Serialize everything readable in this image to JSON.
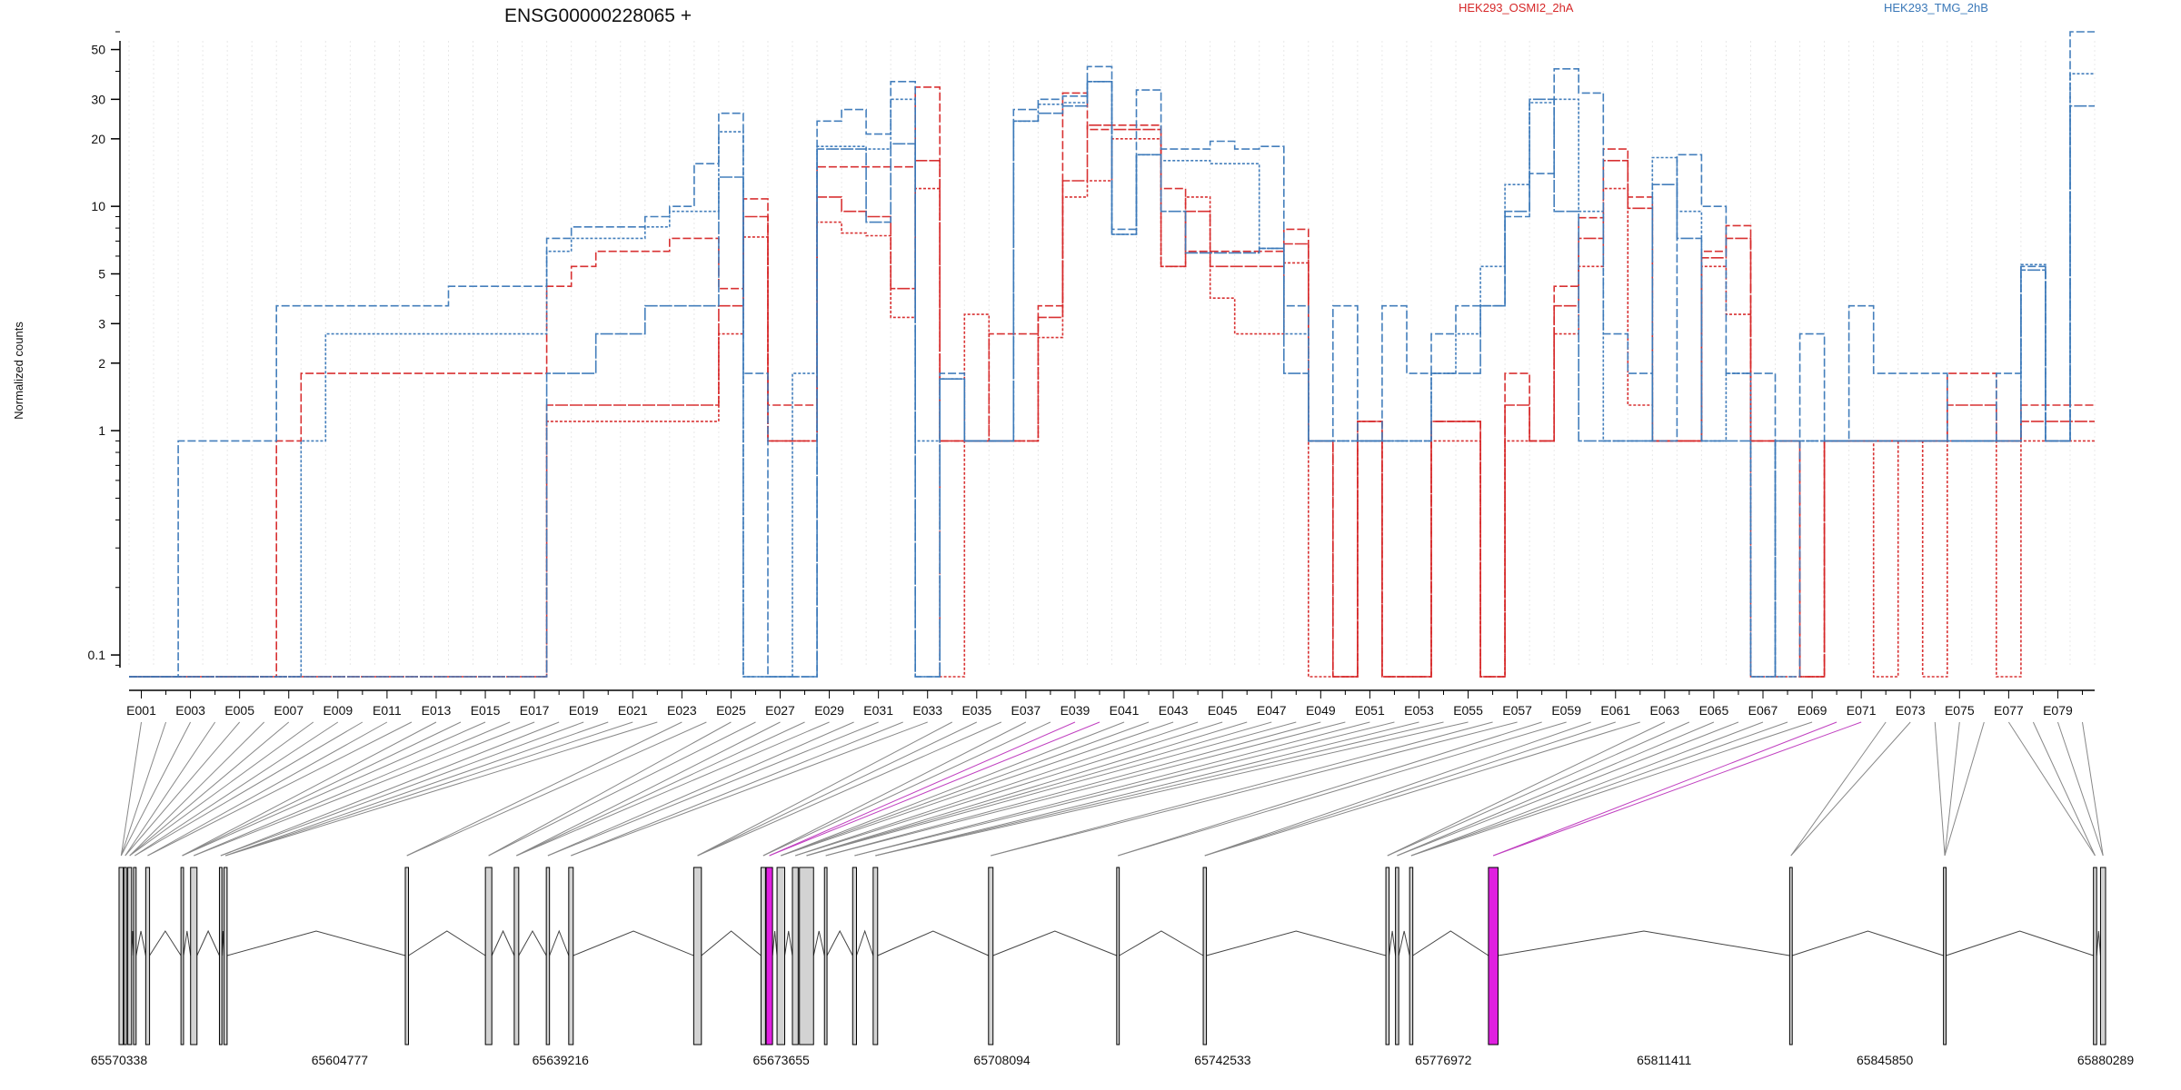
{
  "chart_data": {
    "type": "line",
    "title": "ENSG00000228065 +",
    "ylabel": "Normalized counts",
    "yscale": "log",
    "yticks": [
      "0.1",
      "1",
      "2",
      "3",
      "5",
      "10",
      "20",
      "30",
      "50"
    ],
    "ytick_values": [
      0.1,
      1,
      2,
      3,
      5,
      10,
      20,
      30,
      50
    ],
    "ylim": [
      0.08,
      60
    ],
    "legend": [
      {
        "name": "HEK293_OSMI2_2hA",
        "color": "#d62728"
      },
      {
        "name": "HEK293_TMG_2hB",
        "color": "#3a78b8"
      }
    ],
    "exon_labels": [
      "E001",
      "E003",
      "E005",
      "E007",
      "E009",
      "E011",
      "E013",
      "E015",
      "E017",
      "E019",
      "E021",
      "E023",
      "E025",
      "E027",
      "E029",
      "E031",
      "E033",
      "E035",
      "E037",
      "E039",
      "E041",
      "E043",
      "E045",
      "E047",
      "E049",
      "E051",
      "E053",
      "E055",
      "E057",
      "E059",
      "E061",
      "E063",
      "E065",
      "E067",
      "E069",
      "E071",
      "E073",
      "E075",
      "E077",
      "E079"
    ],
    "exon_count": 80,
    "series": [
      {
        "name": "HEK293_OSMI2_2hA",
        "color": "#d62728",
        "values": [
          0.08,
          0.08,
          0.08,
          0.08,
          0.08,
          0.08,
          0.9,
          1.8,
          1.8,
          1.8,
          1.8,
          1.8,
          1.8,
          1.8,
          1.8,
          1.8,
          1.8,
          4.4,
          5.4,
          6.3,
          6.3,
          6.3,
          7.2,
          7.2,
          4.3,
          10.8,
          1.3,
          1.3,
          15,
          15,
          15,
          15,
          34,
          0.9,
          0.9,
          2.7,
          2.7,
          3.6,
          32,
          22,
          23,
          23,
          12,
          6.3,
          6.3,
          6.3,
          6.3,
          7.9,
          0.9,
          0.08,
          1.1,
          0.08,
          0.08,
          1.1,
          1.1,
          0.08,
          1.8,
          0.9,
          4.4,
          8.9,
          18,
          11,
          0.9,
          0.9,
          6.3,
          8.2,
          0.9,
          0.9,
          0.08,
          0.9,
          0.9,
          0.9,
          0.9,
          0.9,
          1.8,
          1.8,
          0.9,
          1.3,
          1.3,
          1.3
        ]
      },
      {
        "name": "HEK293_OSMI2_2hA",
        "color": "#d62728",
        "values": [
          0.08,
          0.08,
          0.08,
          0.08,
          0.08,
          0.08,
          0.08,
          0.08,
          0.08,
          0.08,
          0.08,
          0.08,
          0.08,
          0.08,
          0.08,
          0.08,
          0.08,
          1.1,
          1.1,
          1.1,
          1.1,
          1.1,
          1.1,
          1.1,
          2.7,
          7.3,
          0.9,
          0.9,
          8.5,
          7.6,
          7.4,
          3.2,
          12,
          0.08,
          3.3,
          0.9,
          0.9,
          2.6,
          11,
          13,
          20,
          20,
          5.4,
          11,
          3.9,
          2.7,
          2.7,
          5.6,
          0.08,
          0.08,
          0.9,
          0.08,
          0.08,
          0.9,
          0.9,
          0.08,
          0.9,
          0.9,
          2.7,
          5.4,
          12,
          1.3,
          0.9,
          0.9,
          5.4,
          3.3,
          0.08,
          0.08,
          0.08,
          0.9,
          0.9,
          0.08,
          0.9,
          0.08,
          0.9,
          0.9,
          0.08,
          0.9,
          0.9,
          0.9
        ]
      },
      {
        "name": "HEK293_OSMI2_2hA",
        "color": "#d62728",
        "values": [
          0.08,
          0.08,
          0.08,
          0.08,
          0.08,
          0.08,
          0.08,
          0.08,
          0.08,
          0.08,
          0.08,
          0.08,
          0.08,
          0.08,
          0.08,
          0.08,
          0.08,
          1.3,
          1.3,
          1.3,
          1.3,
          1.3,
          1.3,
          1.3,
          3.6,
          9,
          0.9,
          0.9,
          11,
          9.5,
          9,
          4.3,
          16,
          0.9,
          0.9,
          0.9,
          0.9,
          3.2,
          13,
          23,
          22,
          22,
          5.4,
          9.5,
          5.4,
          5.4,
          5.4,
          6.8,
          0.9,
          0.08,
          1.1,
          0.08,
          0.08,
          1.1,
          1.1,
          0.08,
          1.3,
          0.9,
          3.6,
          7.2,
          16,
          9.8,
          0.9,
          0.9,
          5.9,
          7.2,
          0.9,
          0.9,
          0.08,
          0.9,
          0.9,
          0.9,
          0.9,
          0.9,
          1.3,
          1.3,
          0.9,
          1.1,
          1.1,
          1.1
        ]
      },
      {
        "name": "HEK293_TMG_2hB",
        "color": "#3a78b8",
        "values": [
          0.08,
          0.08,
          0.9,
          0.9,
          0.9,
          0.9,
          3.6,
          3.6,
          3.6,
          3.6,
          3.6,
          3.6,
          3.6,
          4.4,
          4.4,
          4.4,
          4.4,
          7.2,
          8.1,
          8.1,
          8.1,
          9,
          10,
          15.5,
          26,
          1.8,
          0.08,
          0.08,
          24,
          27,
          21,
          36,
          0.08,
          1.8,
          0.9,
          0.9,
          27,
          30,
          31,
          42,
          7.9,
          33,
          18,
          18,
          19.5,
          18,
          18.5,
          3.6,
          0.9,
          3.6,
          0.9,
          3.6,
          1.8,
          2.7,
          3.6,
          3.6,
          9,
          14,
          41,
          32,
          2.7,
          1.8,
          0.9,
          17,
          10,
          1.8,
          1.8,
          0.08,
          2.7,
          0.9,
          3.6,
          1.8,
          1.8,
          1.8,
          0.9,
          0.9,
          1.8,
          5.4,
          0.9,
          60
        ]
      },
      {
        "name": "HEK293_TMG_2hB",
        "color": "#3a78b8",
        "values": [
          0.08,
          0.08,
          0.08,
          0.08,
          0.08,
          0.08,
          0.08,
          0.9,
          2.7,
          2.7,
          2.7,
          2.7,
          2.7,
          2.7,
          2.7,
          2.7,
          2.7,
          6.3,
          7.2,
          7.2,
          7.2,
          8.1,
          9.5,
          9.5,
          21.5,
          0.08,
          0.08,
          1.8,
          18.5,
          18.5,
          18,
          30,
          0.9,
          1.7,
          0.9,
          0.9,
          24,
          28.5,
          29,
          36,
          7.5,
          17,
          16,
          16,
          15.5,
          15.5,
          6.5,
          2.7,
          0.9,
          0.9,
          0.9,
          0.9,
          0.9,
          1.8,
          2.7,
          5.4,
          12.5,
          29,
          30,
          9.5,
          0.9,
          0.9,
          16.5,
          9.5,
          0.9,
          1.8,
          0.08,
          0.9,
          0.9,
          0.9,
          0.9,
          0.9,
          0.9,
          0.9,
          0.9,
          0.9,
          0.9,
          5.5,
          0.9,
          39
        ]
      },
      {
        "name": "HEK293_TMG_2hB",
        "color": "#3a78b8",
        "values": [
          0.08,
          0.08,
          0.08,
          0.08,
          0.08,
          0.08,
          0.08,
          0.08,
          0.08,
          0.08,
          0.08,
          0.08,
          0.08,
          0.08,
          0.08,
          0.08,
          0.08,
          1.8,
          1.8,
          2.7,
          2.7,
          3.6,
          3.6,
          3.6,
          13.5,
          0.08,
          0.08,
          0.08,
          18,
          18,
          8.5,
          19,
          0.08,
          1.7,
          0.9,
          0.9,
          24,
          26,
          28,
          36,
          7.5,
          17,
          9.5,
          6.2,
          6.2,
          6.2,
          6.5,
          1.8,
          0.9,
          0.9,
          0.9,
          0.9,
          0.9,
          1.8,
          1.8,
          3.6,
          9.5,
          30,
          9.5,
          0.9,
          0.9,
          0.9,
          12.5,
          7.2,
          0.9,
          0.9,
          0.08,
          0.9,
          0.9,
          0.9,
          0.9,
          0.9,
          0.9,
          0.9,
          0.9,
          0.9,
          0.9,
          5.2,
          0.9,
          28
        ]
      }
    ],
    "genomic_ticks": [
      "65570338",
      "65604777",
      "65639216",
      "65673655",
      "65708094",
      "65742533",
      "65776972",
      "65811411",
      "65845850",
      "65880289"
    ],
    "genomic_range": [
      65570338,
      65880289
    ],
    "gene_exons": [
      {
        "start": 65570338,
        "end": 65571000
      },
      {
        "start": 65571100,
        "end": 65571500
      },
      {
        "start": 65571700,
        "end": 65572300
      },
      {
        "start": 65572600,
        "end": 65573000
      },
      {
        "start": 65574500,
        "end": 65575100
      },
      {
        "start": 65580000,
        "end": 65580400
      },
      {
        "start": 65581500,
        "end": 65582500
      },
      {
        "start": 65586000,
        "end": 65586400
      },
      {
        "start": 65586700,
        "end": 65587200
      },
      {
        "start": 65615000,
        "end": 65615500
      },
      {
        "start": 65627500,
        "end": 65628500
      },
      {
        "start": 65632000,
        "end": 65632700
      },
      {
        "start": 65637000,
        "end": 65637500
      },
      {
        "start": 65640500,
        "end": 65641200
      },
      {
        "start": 65660000,
        "end": 65661200
      },
      {
        "start": 65670500,
        "end": 65671200
      },
      {
        "start": 65671300,
        "end": 65672300,
        "highlight": true
      },
      {
        "start": 65673000,
        "end": 65674200
      },
      {
        "start": 65675400,
        "end": 65676300
      },
      {
        "start": 65676500,
        "end": 65678700
      },
      {
        "start": 65680400,
        "end": 65680800
      },
      {
        "start": 65684800,
        "end": 65685400
      },
      {
        "start": 65688000,
        "end": 65688700
      },
      {
        "start": 65706000,
        "end": 65706700
      },
      {
        "start": 65726000,
        "end": 65726400
      },
      {
        "start": 65739500,
        "end": 65740000
      },
      {
        "start": 65768000,
        "end": 65768500
      },
      {
        "start": 65769500,
        "end": 65770000
      },
      {
        "start": 65771700,
        "end": 65772200
      },
      {
        "start": 65784000,
        "end": 65785500,
        "highlight": true
      },
      {
        "start": 65831000,
        "end": 65831400
      },
      {
        "start": 65855000,
        "end": 65855400
      },
      {
        "start": 65878400,
        "end": 65878900
      },
      {
        "start": 65879500,
        "end": 65880289
      }
    ]
  }
}
